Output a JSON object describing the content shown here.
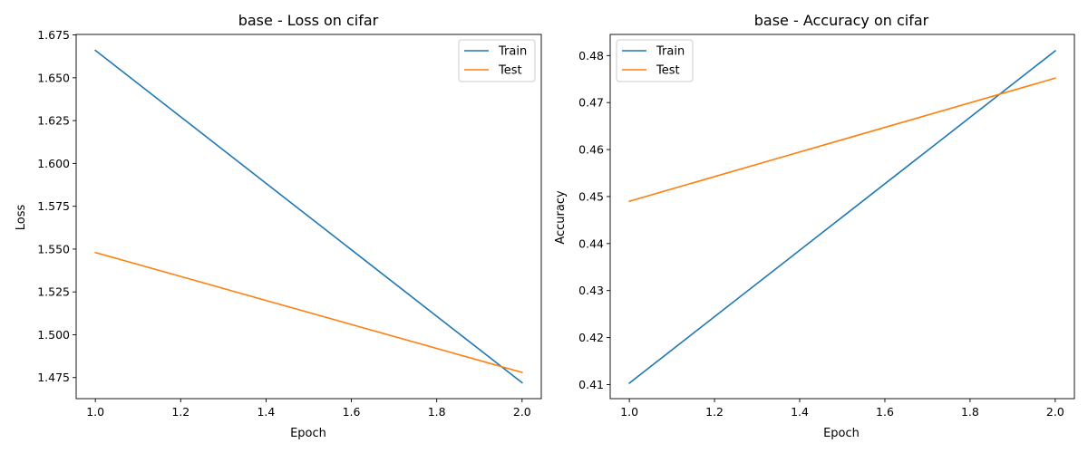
{
  "chart_data": [
    {
      "type": "line",
      "title": "base - Loss on cifar",
      "xlabel": "Epoch",
      "ylabel": "Loss",
      "x": [
        1.0,
        2.0
      ],
      "xlim": [
        0.955,
        2.045
      ],
      "ylim": [
        1.4627,
        1.6753
      ],
      "xticks": [
        "1.0",
        "1.2",
        "1.4",
        "1.6",
        "1.8",
        "2.0"
      ],
      "xtick_values": [
        1.0,
        1.2,
        1.4,
        1.6,
        1.8,
        2.0
      ],
      "yticks": [
        "1.475",
        "1.500",
        "1.525",
        "1.550",
        "1.575",
        "1.600",
        "1.625",
        "1.650",
        "1.675"
      ],
      "ytick_values": [
        1.475,
        1.5,
        1.525,
        1.55,
        1.575,
        1.6,
        1.625,
        1.65,
        1.675
      ],
      "grid": false,
      "legend_position": "top-right",
      "series": [
        {
          "name": "Train",
          "color": "#1f77b4",
          "values": [
            1.666,
            1.472
          ]
        },
        {
          "name": "Test",
          "color": "#ff7f0e",
          "values": [
            1.548,
            1.478
          ]
        }
      ]
    },
    {
      "type": "line",
      "title": "base - Accuracy on cifar",
      "xlabel": "Epoch",
      "ylabel": "Accuracy",
      "x": [
        1.0,
        2.0
      ],
      "xlim": [
        0.955,
        2.045
      ],
      "ylim": [
        0.407,
        0.4845
      ],
      "xticks": [
        "1.0",
        "1.2",
        "1.4",
        "1.6",
        "1.8",
        "2.0"
      ],
      "xtick_values": [
        1.0,
        1.2,
        1.4,
        1.6,
        1.8,
        2.0
      ],
      "yticks": [
        "0.41",
        "0.42",
        "0.43",
        "0.44",
        "0.45",
        "0.46",
        "0.47",
        "0.48"
      ],
      "ytick_values": [
        0.41,
        0.42,
        0.43,
        0.44,
        0.45,
        0.46,
        0.47,
        0.48
      ],
      "grid": false,
      "legend_position": "top-left",
      "series": [
        {
          "name": "Train",
          "color": "#1f77b4",
          "values": [
            0.4103,
            0.481
          ]
        },
        {
          "name": "Test",
          "color": "#ff7f0e",
          "values": [
            0.449,
            0.4752
          ]
        }
      ]
    }
  ]
}
